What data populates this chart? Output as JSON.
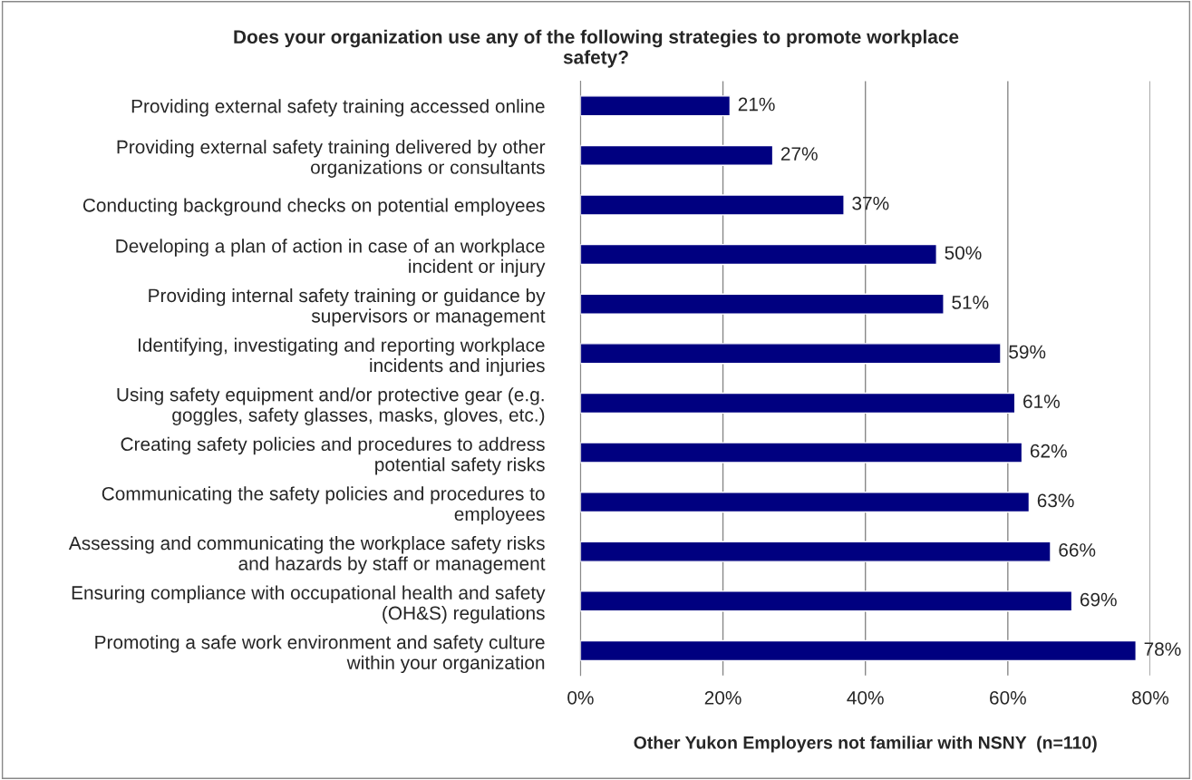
{
  "chart_data": {
    "type": "bar",
    "orientation": "horizontal",
    "title": "Does your organization use any of the following strategies to promote workplace\nsafety?",
    "xlabel": "Other Yukon Employers not familiar with NSNY  (n=110)",
    "categories": [
      "Providing external safety training accessed online",
      "Providing external safety training delivered by other\norganizations or consultants",
      "Conducting background checks on potential employees",
      "Developing a plan of action in case of an workplace\nincident or injury",
      "Providing internal safety training or guidance by\nsupervisors or management",
      "Identifying, investigating and reporting workplace\nincidents and injuries",
      "Using safety equipment and/or protective gear (e.g.\ngoggles, safety glasses, masks, gloves, etc.)",
      "Creating safety policies and procedures to address\npotential safety risks",
      "Communicating the safety policies and procedures to\nemployees",
      "Assessing and communicating the workplace safety risks\nand hazards by staff or management",
      "Ensuring compliance with occupational health and safety\n(OH&S) regulations",
      "Promoting a safe work environment and safety culture\nwithin your organization"
    ],
    "values": [
      21,
      27,
      37,
      50,
      51,
      59,
      61,
      62,
      63,
      66,
      69,
      78
    ],
    "value_labels": [
      "21%",
      "27%",
      "37%",
      "50%",
      "51%",
      "59%",
      "61%",
      "62%",
      "63%",
      "66%",
      "69%",
      "78%"
    ],
    "color": "#000080",
    "xlim": [
      0,
      80
    ],
    "xticks": [
      {
        "value": 0,
        "label": "0%"
      },
      {
        "value": 20,
        "label": "20%"
      },
      {
        "value": 40,
        "label": "40%"
      },
      {
        "value": 60,
        "label": "60%"
      },
      {
        "value": 80,
        "label": "80%"
      }
    ],
    "grid": "x",
    "legend": false
  }
}
